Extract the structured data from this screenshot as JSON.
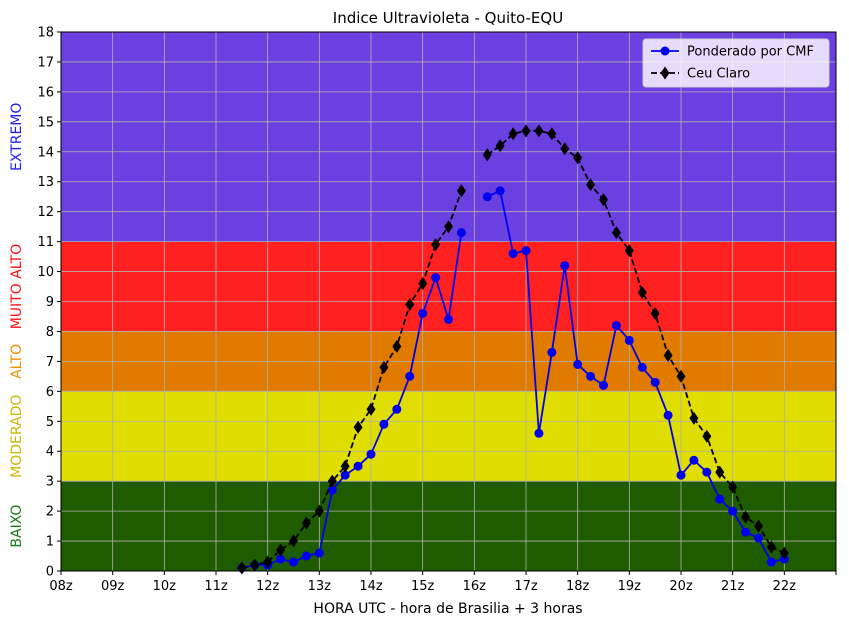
{
  "chart_data": {
    "type": "line",
    "title": "Indice Ultravioleta - Quito-EQU",
    "xlabel": "HORA UTC - hora de Brasilia + 3 horas",
    "ylabel": "",
    "x_ticks": [
      {
        "value": 8,
        "label": "08z"
      },
      {
        "value": 9,
        "label": "09z"
      },
      {
        "value": 10,
        "label": "10z"
      },
      {
        "value": 11,
        "label": "11z"
      },
      {
        "value": 12,
        "label": "12z"
      },
      {
        "value": 13,
        "label": "13z"
      },
      {
        "value": 14,
        "label": "14z"
      },
      {
        "value": 15,
        "label": "15z"
      },
      {
        "value": 16,
        "label": "16z"
      },
      {
        "value": 17,
        "label": "17z"
      },
      {
        "value": 18,
        "label": "18z"
      },
      {
        "value": 19,
        "label": "19z"
      },
      {
        "value": 20,
        "label": "20z"
      },
      {
        "value": 21,
        "label": "21z"
      },
      {
        "value": 22,
        "label": "22z"
      },
      {
        "value": 23,
        "label": ""
      }
    ],
    "xlim": [
      8,
      23
    ],
    "ylim": [
      0,
      18
    ],
    "y_ticks": [
      0,
      1,
      2,
      3,
      4,
      5,
      6,
      7,
      8,
      9,
      10,
      11,
      12,
      13,
      14,
      15,
      16,
      17,
      18
    ],
    "grid": true,
    "legend_position": "top-right",
    "bands": [
      {
        "label": "BAIXO",
        "from": 0,
        "to": 3,
        "fill": "#1f5c00",
        "text_color": "#1a7a1a"
      },
      {
        "label": "MODERADO",
        "from": 3,
        "to": 6,
        "fill": "#e0dd00",
        "text_color": "#c9b800"
      },
      {
        "label": "ALTO",
        "from": 6,
        "to": 8,
        "fill": "#e07b00",
        "text_color": "#f09000"
      },
      {
        "label": "MUITO ALTO",
        "from": 8,
        "to": 11,
        "fill": "#ff2020",
        "text_color": "#ff1010"
      },
      {
        "label": "EXTREMO",
        "from": 11,
        "to": 18,
        "fill": "#6a40e0",
        "text_color": "#2020ee"
      }
    ],
    "series": [
      {
        "name": "Ponderado por CMF",
        "color": "#0000ee",
        "marker": "circle",
        "dash": "solid",
        "x": [
          11.5,
          11.75,
          12.0,
          12.25,
          12.5,
          12.75,
          13.0,
          13.25,
          13.5,
          13.75,
          14.0,
          14.25,
          14.5,
          14.75,
          15.0,
          15.25,
          15.5,
          15.75,
          null,
          16.25,
          16.5,
          16.75,
          17.0,
          17.25,
          17.5,
          17.75,
          18.0,
          18.25,
          18.5,
          18.75,
          19.0,
          19.25,
          19.5,
          19.75,
          20.0,
          20.25,
          20.5,
          20.75,
          21.0,
          21.25,
          21.5,
          21.75,
          22.0
        ],
        "y": [
          0.1,
          0.2,
          0.2,
          0.4,
          0.3,
          0.5,
          0.6,
          2.7,
          3.2,
          3.5,
          3.9,
          4.9,
          5.4,
          6.5,
          8.6,
          9.8,
          8.4,
          11.3,
          null,
          12.5,
          12.7,
          10.6,
          10.7,
          4.6,
          7.3,
          10.2,
          6.9,
          6.5,
          6.2,
          8.2,
          7.7,
          6.8,
          6.3,
          5.2,
          3.2,
          3.7,
          3.3,
          2.4,
          2.0,
          1.3,
          1.1,
          0.3,
          0.4
        ]
      },
      {
        "name": "Ceu Claro",
        "color": "#000000",
        "marker": "diamond",
        "dash": "dashed",
        "x": [
          11.5,
          11.75,
          12.0,
          12.25,
          12.5,
          12.75,
          13.0,
          13.25,
          13.5,
          13.75,
          14.0,
          14.25,
          14.5,
          14.75,
          15.0,
          15.25,
          15.5,
          15.75,
          null,
          16.25,
          16.5,
          16.75,
          17.0,
          17.25,
          17.5,
          17.75,
          18.0,
          18.25,
          18.5,
          18.75,
          19.0,
          19.25,
          19.5,
          19.75,
          20.0,
          20.25,
          20.5,
          20.75,
          21.0,
          21.25,
          21.5,
          21.75,
          22.0
        ],
        "y": [
          0.1,
          0.2,
          0.3,
          0.7,
          1.0,
          1.6,
          2.0,
          3.0,
          3.5,
          4.8,
          5.4,
          6.8,
          7.5,
          8.9,
          9.6,
          10.9,
          11.5,
          12.7,
          null,
          13.9,
          14.2,
          14.6,
          14.7,
          14.7,
          14.6,
          14.1,
          13.8,
          12.9,
          12.4,
          11.3,
          10.7,
          9.3,
          8.6,
          7.2,
          6.5,
          5.1,
          4.5,
          3.3,
          2.8,
          1.8,
          1.5,
          0.8,
          0.6
        ]
      }
    ]
  }
}
